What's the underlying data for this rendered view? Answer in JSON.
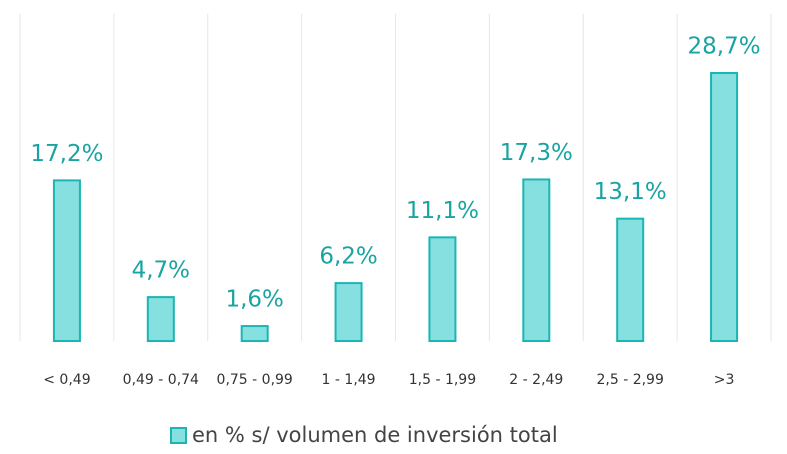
{
  "chart_data": {
    "type": "bar",
    "categories": [
      "< 0,49",
      "0,49 - 0,74",
      "0,75 - 0,99",
      "1 - 1,49",
      "1,5 - 1,99",
      "2 - 2,49",
      "2,5 - 2,99",
      ">3"
    ],
    "series": [
      {
        "name": "en % s/ volumen de inversión total",
        "color": "#86e0e0",
        "values": [
          17.2,
          4.7,
          1.6,
          6.2,
          11.1,
          17.3,
          13.1,
          28.7
        ],
        "value_labels": [
          "17,2%",
          "4,7%",
          "1,6%",
          "6,2%",
          "11,1%",
          "17,3%",
          "13,1%",
          "28,7%"
        ]
      }
    ],
    "legend": "bottom"
  }
}
